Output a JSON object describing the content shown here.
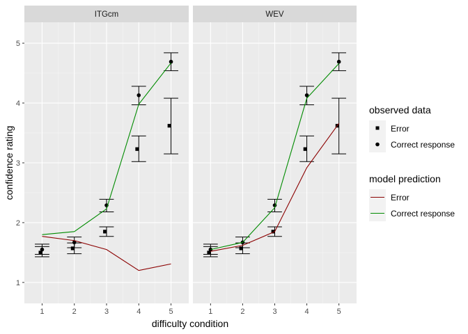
{
  "chart_data": {
    "type": "line",
    "panels": [
      "ITGcm",
      "WEV"
    ],
    "xlabel": "difficulty condition",
    "ylabel": "confidence rating",
    "x": [
      1,
      2,
      3,
      4,
      5
    ],
    "x_ticks": [
      "1",
      "2",
      "3",
      "4",
      "5"
    ],
    "y_ticks": [
      "1",
      "2",
      "3",
      "4",
      "5"
    ],
    "xlim": [
      0.45,
      5.55
    ],
    "ylim": [
      0.65,
      5.35
    ],
    "grid": true,
    "legend_position": "right",
    "legend": {
      "observed_title": "observed data",
      "observed_items": [
        "Error",
        "Correct response"
      ],
      "model_title": "model prediction",
      "model_items": [
        "Error",
        "Correct response"
      ]
    },
    "colors": {
      "model_error": "#8b0000",
      "model_correct": "#008b00",
      "points": "#000000",
      "panel_bg": "#ebebeb",
      "strip_bg": "#d9d9d9"
    },
    "observed": [
      {
        "panel": "ITGcm",
        "series": "Error",
        "shape": "square",
        "x_offset": -0.05,
        "values": [
          1.5,
          1.57,
          1.85,
          3.23,
          3.62
        ],
        "ci_lower": [
          1.43,
          1.48,
          1.77,
          3.02,
          3.15
        ],
        "ci_upper": [
          1.6,
          1.66,
          1.93,
          3.45,
          4.08
        ]
      },
      {
        "panel": "ITGcm",
        "series": "Correct response",
        "shape": "circle",
        "x_offset": 0.0,
        "values": [
          1.55,
          1.67,
          2.29,
          4.13,
          4.69
        ],
        "ci_lower": [
          1.47,
          1.58,
          2.18,
          3.97,
          4.54
        ],
        "ci_upper": [
          1.64,
          1.76,
          2.39,
          4.28,
          4.84
        ]
      },
      {
        "panel": "WEV",
        "series": "Error",
        "shape": "square",
        "x_offset": -0.05,
        "values": [
          1.5,
          1.57,
          1.85,
          3.23,
          3.62
        ],
        "ci_lower": [
          1.43,
          1.48,
          1.77,
          3.02,
          3.15
        ],
        "ci_upper": [
          1.6,
          1.66,
          1.93,
          3.45,
          4.08
        ]
      },
      {
        "panel": "WEV",
        "series": "Correct response",
        "shape": "circle",
        "x_offset": 0.0,
        "values": [
          1.55,
          1.67,
          2.29,
          4.13,
          4.69
        ],
        "ci_lower": [
          1.47,
          1.58,
          2.18,
          3.97,
          4.54
        ],
        "ci_upper": [
          1.64,
          1.76,
          2.39,
          4.28,
          4.84
        ]
      }
    ],
    "predicted": [
      {
        "panel": "ITGcm",
        "series": "Error",
        "values": [
          1.77,
          1.7,
          1.55,
          1.2,
          1.31
        ]
      },
      {
        "panel": "ITGcm",
        "series": "Correct response",
        "values": [
          1.8,
          1.85,
          2.23,
          3.98,
          4.67
        ]
      },
      {
        "panel": "WEV",
        "series": "Error",
        "values": [
          1.52,
          1.62,
          1.85,
          2.92,
          3.66
        ]
      },
      {
        "panel": "WEV",
        "series": "Correct response",
        "values": [
          1.55,
          1.67,
          2.25,
          4.08,
          4.66
        ]
      }
    ]
  }
}
